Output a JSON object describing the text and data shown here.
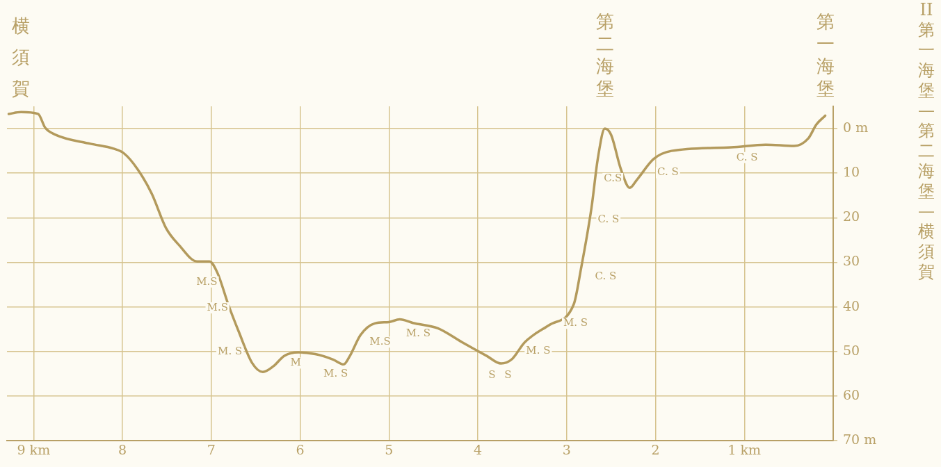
{
  "chart_data": {
    "type": "line",
    "title": "II 第一海堡—第二海堡—横須賀",
    "x": [
      9.28,
      9.14,
      8.95,
      8.87,
      8.75,
      8.36,
      8.1,
      7.98,
      7.83,
      7.67,
      7.51,
      7.36,
      7.16,
      7.02,
      6.93,
      6.81,
      6.69,
      6.54,
      6.42,
      6.3,
      6.18,
      6.02,
      5.83,
      5.63,
      5.51,
      5.44,
      5.32,
      5.16,
      5.0,
      4.88,
      4.73,
      4.45,
      4.18,
      3.9,
      3.74,
      3.62,
      3.47,
      3.19,
      2.92,
      2.84,
      2.72,
      2.65,
      2.57,
      2.5,
      2.39,
      2.29,
      2.21,
      2.02,
      1.82,
      1.15,
      0.76,
      0.44,
      0.28,
      0.19,
      0.09
    ],
    "series": [
      {
        "color": "#b39a5c",
        "values": [
          -3.3,
          -3.7,
          -3.3,
          -0.2,
          1.4,
          3.4,
          4.5,
          5.6,
          9.1,
          14.6,
          22.3,
          26.2,
          29.8,
          29.8,
          32.4,
          39.4,
          45.6,
          52.6,
          54.6,
          53.3,
          51.0,
          50.2,
          50.6,
          51.8,
          52.9,
          51.0,
          46.3,
          43.7,
          43.4,
          42.8,
          43.6,
          44.8,
          47.9,
          51.0,
          52.7,
          51.8,
          47.9,
          44.0,
          39.4,
          31.6,
          17.7,
          6.8,
          0,
          1.4,
          9.1,
          13.3,
          11.5,
          6.8,
          5.0,
          4.2,
          3.6,
          3.9,
          2.2,
          -0.9,
          -2.9
        ]
      }
    ],
    "xlim": [
      9.3,
      0
    ],
    "ylim": [
      70,
      -5
    ],
    "xticks": [
      {
        "value": 9,
        "label": "9 km"
      },
      8,
      7,
      6,
      5,
      4,
      3,
      2,
      {
        "value": 1,
        "label": "1 km"
      },
      {
        "value": 0,
        "label": null
      }
    ],
    "yticks": [
      {
        "value": 0,
        "label": "0 m"
      },
      10,
      20,
      30,
      40,
      50,
      60,
      {
        "value": 70,
        "label": "70 m"
      }
    ],
    "grid": true,
    "legend": false,
    "marker": "none",
    "line_style": "solid",
    "annotations": [
      {
        "text": "横須賀",
        "x": 9.14,
        "y": -3.7
      },
      {
        "text": "第二海堡",
        "x": 2.57,
        "y": 0
      },
      {
        "text": "第一海堡",
        "x": 0.09,
        "y": -2.9
      },
      {
        "text": "M.S",
        "x": 7.05,
        "y": 34.4
      },
      {
        "text": "M.S",
        "x": 6.93,
        "y": 40.2
      },
      {
        "text": "M. S",
        "x": 6.79,
        "y": 50.1
      },
      {
        "text": "M",
        "x": 6.05,
        "y": 52.6
      },
      {
        "text": "M. S",
        "x": 5.6,
        "y": 55.0
      },
      {
        "text": "M.S",
        "x": 5.1,
        "y": 47.9
      },
      {
        "text": "M. S",
        "x": 4.67,
        "y": 46.0
      },
      {
        "text": "S",
        "x": 3.84,
        "y": 55.3
      },
      {
        "text": "S",
        "x": 3.66,
        "y": 55.3
      },
      {
        "text": "M. S",
        "x": 3.32,
        "y": 49.9
      },
      {
        "text": "M. S",
        "x": 2.9,
        "y": 43.7
      },
      {
        "text": "C. S",
        "x": 2.56,
        "y": 33.2
      },
      {
        "text": "C. S",
        "x": 2.53,
        "y": 20.5
      },
      {
        "text": "C.S",
        "x": 2.48,
        "y": 11.2
      },
      {
        "text": "C. S",
        "x": 1.86,
        "y": 9.9
      },
      {
        "text": "C. S",
        "x": 0.97,
        "y": 6.5
      }
    ]
  }
}
